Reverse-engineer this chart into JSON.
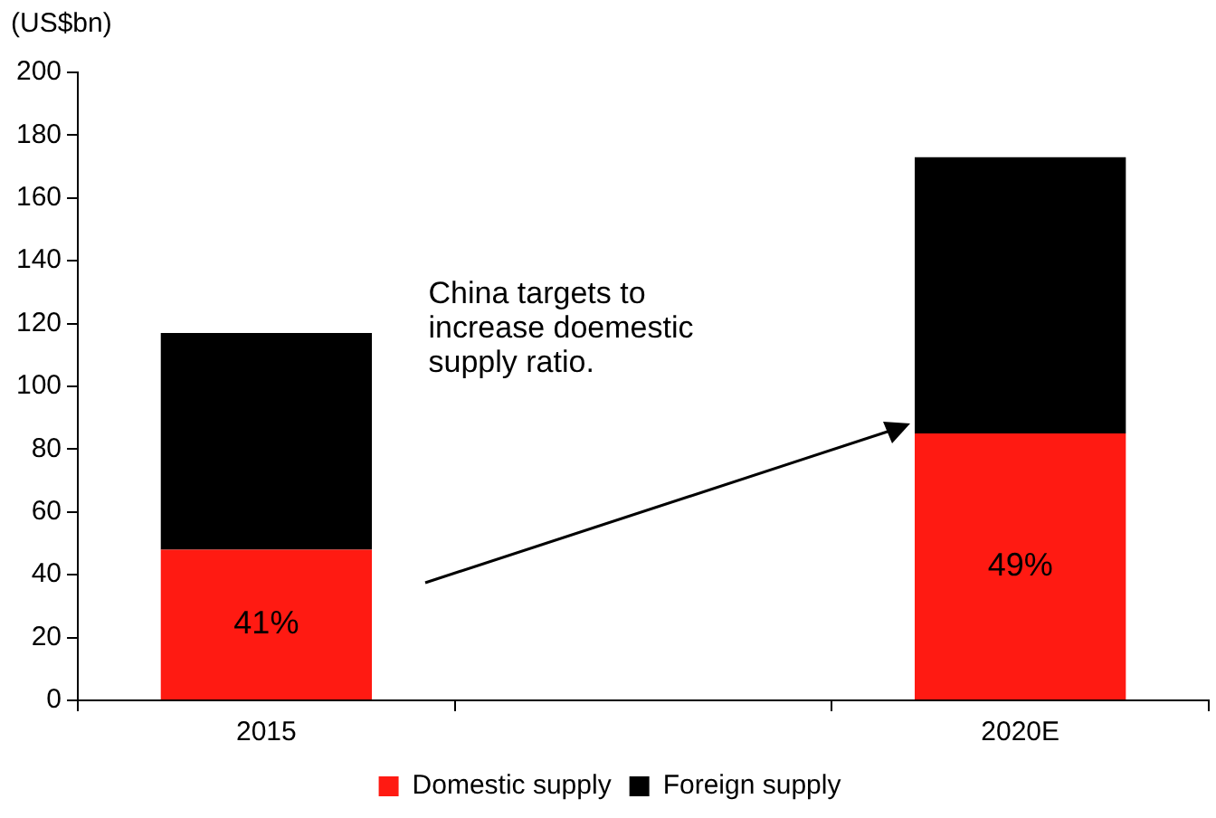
{
  "chart_data": {
    "type": "bar",
    "ylabel": "(US$bn)",
    "categories": [
      "2015",
      null,
      "2020E"
    ],
    "stacked": true,
    "ylim": [
      0,
      200
    ],
    "yticks": [
      0,
      20,
      40,
      60,
      80,
      100,
      120,
      140,
      160,
      180,
      200
    ],
    "grid": false,
    "legend": "bottom",
    "series": [
      {
        "name": "Domestic supply",
        "color": "#ff1a12",
        "values": [
          48,
          null,
          85
        ]
      },
      {
        "name": "Foreign supply",
        "color": "#000000",
        "values": [
          69,
          null,
          88
        ]
      }
    ],
    "annotations": [
      "China targets to increase doemestic supply ratio.",
      "41%",
      "49%"
    ]
  }
}
